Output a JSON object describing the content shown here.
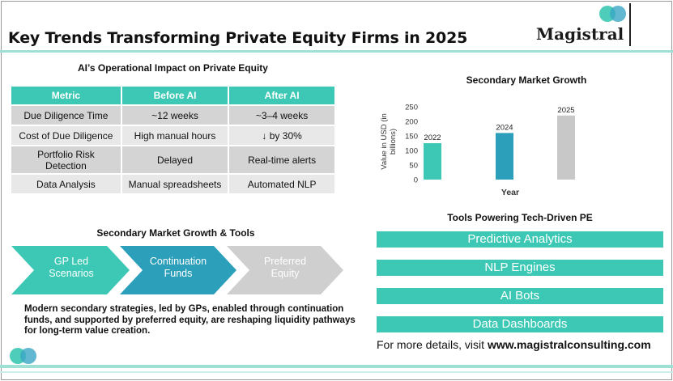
{
  "header": {
    "title": "Key Trends Transforming Private Equity Firms in 2025",
    "logo_text": "Magistral"
  },
  "ai_impact": {
    "heading": "AI’s Operational Impact on Private Equity",
    "columns": [
      "Metric",
      "Before AI",
      "After AI"
    ],
    "rows": [
      [
        "Due Diligence Time",
        "~12 weeks",
        "~3–4 weeks"
      ],
      [
        "Cost of Due Diligence",
        "High manual hours",
        "↓ by 30%"
      ],
      [
        "Portfolio Risk Detection",
        "Delayed",
        "Real-time alerts"
      ],
      [
        "Data Analysis",
        "Manual spreadsheets",
        "Automated NLP"
      ]
    ]
  },
  "secondary_tools": {
    "heading": "Secondary Market Growth & Tools",
    "steps": [
      {
        "line1": "GP Led",
        "line2": "Scenarios",
        "color": "#3cc8b4"
      },
      {
        "line1": "Continuation",
        "line2": "Funds",
        "color": "#2c9fba"
      },
      {
        "line1": "Preferred",
        "line2": "Equity",
        "color": "#cfcfcf"
      }
    ],
    "description": "Modern secondary strategies, led by GPs, enabled through continuation funds, and supported by preferred equity, are reshaping liquidity pathways for long-term value creation."
  },
  "chart_data": {
    "type": "bar",
    "title": "Secondary Market Growth",
    "xlabel": "Year",
    "ylabel": "Value in USD (in billions)",
    "categories": [
      "2022",
      "2024",
      "2025"
    ],
    "values": [
      125,
      160,
      220
    ],
    "colors": [
      "#3cc8b4",
      "#2c9fba",
      "#c8c8c8"
    ],
    "ylim": [
      0,
      250
    ],
    "yticks": [
      0,
      50,
      100,
      150,
      200,
      250
    ],
    "grid": false,
    "data_labels": "category-above-bar"
  },
  "tools": {
    "heading": "Tools Powering Tech-Driven PE",
    "items": [
      "Predictive Analytics",
      "NLP Engines",
      "AI Bots",
      "Data Dashboards"
    ]
  },
  "footer": {
    "prefix": "For more details, visit ",
    "url": "www.magistralconsulting.com"
  },
  "colors": {
    "accent_teal": "#3cc8b4",
    "accent_blue": "#2c9fba",
    "rule": "#9fe0d4"
  }
}
